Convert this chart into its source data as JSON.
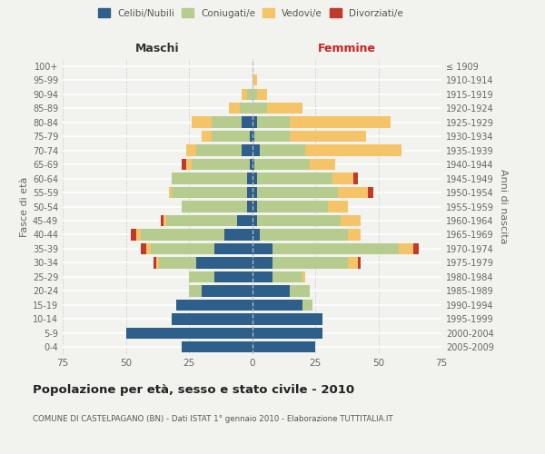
{
  "age_groups": [
    "0-4",
    "5-9",
    "10-14",
    "15-19",
    "20-24",
    "25-29",
    "30-34",
    "35-39",
    "40-44",
    "45-49",
    "50-54",
    "55-59",
    "60-64",
    "65-69",
    "70-74",
    "75-79",
    "80-84",
    "85-89",
    "90-94",
    "95-99",
    "100+"
  ],
  "birth_years": [
    "2005-2009",
    "2000-2004",
    "1995-1999",
    "1990-1994",
    "1985-1989",
    "1980-1984",
    "1975-1979",
    "1970-1974",
    "1965-1969",
    "1960-1964",
    "1955-1959",
    "1950-1954",
    "1945-1949",
    "1940-1944",
    "1935-1939",
    "1930-1934",
    "1925-1929",
    "1920-1924",
    "1915-1919",
    "1910-1914",
    "≤ 1909"
  ],
  "maschi": {
    "celibi": [
      28,
      50,
      32,
      30,
      20,
      15,
      22,
      15,
      11,
      6,
      2,
      2,
      2,
      1,
      4,
      1,
      4,
      0,
      0,
      0,
      0
    ],
    "coniugati": [
      0,
      0,
      0,
      0,
      5,
      10,
      15,
      25,
      33,
      28,
      26,
      30,
      30,
      23,
      18,
      15,
      12,
      5,
      2,
      0,
      0
    ],
    "vedovi": [
      0,
      0,
      0,
      0,
      0,
      0,
      1,
      2,
      2,
      1,
      0,
      1,
      0,
      2,
      4,
      4,
      8,
      4,
      2,
      0,
      0
    ],
    "divorziati": [
      0,
      0,
      0,
      0,
      0,
      0,
      1,
      2,
      2,
      1,
      0,
      0,
      0,
      2,
      0,
      0,
      0,
      0,
      0,
      0,
      0
    ]
  },
  "femmine": {
    "nubili": [
      25,
      28,
      28,
      20,
      15,
      8,
      8,
      8,
      3,
      2,
      2,
      2,
      2,
      1,
      3,
      1,
      2,
      0,
      0,
      0,
      0
    ],
    "coniugate": [
      0,
      0,
      0,
      4,
      8,
      12,
      30,
      50,
      35,
      33,
      28,
      32,
      30,
      22,
      18,
      14,
      13,
      6,
      2,
      0,
      0
    ],
    "vedove": [
      0,
      0,
      0,
      0,
      0,
      1,
      4,
      6,
      5,
      8,
      8,
      12,
      8,
      10,
      38,
      30,
      40,
      14,
      4,
      2,
      0
    ],
    "divorziate": [
      0,
      0,
      0,
      0,
      0,
      0,
      1,
      2,
      0,
      0,
      0,
      2,
      2,
      0,
      0,
      0,
      0,
      0,
      0,
      0,
      0
    ]
  },
  "colors": {
    "celibi": "#2e5f8a",
    "coniugati": "#b5cc8e",
    "vedovi": "#f5c469",
    "divorziati": "#c0392b"
  },
  "xlim": 75,
  "title": "Popolazione per età, sesso e stato civile - 2010",
  "subtitle": "COMUNE DI CASTELPAGANO (BN) - Dati ISTAT 1° gennaio 2010 - Elaborazione TUTTITALIA.IT",
  "ylabel_left": "Fasce di età",
  "ylabel_right": "Anni di nascita",
  "xlabel_left": "Maschi",
  "xlabel_right": "Femmine",
  "bg_color": "#f2f2ee",
  "bar_height": 0.8
}
